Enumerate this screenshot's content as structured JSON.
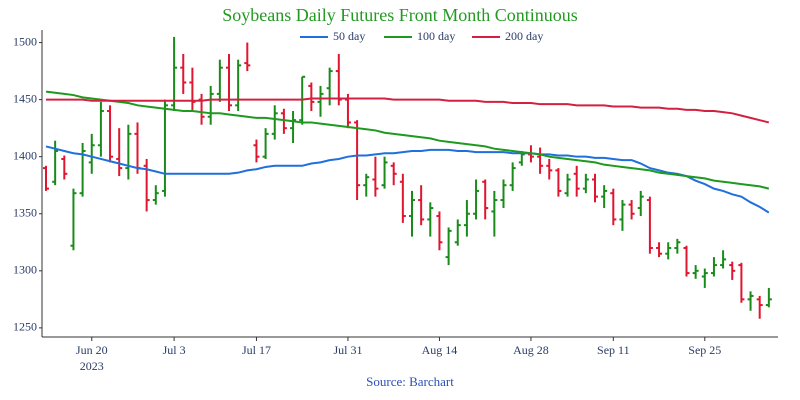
{
  "chart_data": {
    "type": "ohlc",
    "title": "Soybeans Daily Futures Front Month Continuous",
    "source": "Source: Barchart",
    "x": [
      "2023-06-12",
      "2023-06-13",
      "2023-06-14",
      "2023-06-15",
      "2023-06-16",
      "2023-06-20",
      "2023-06-21",
      "2023-06-22",
      "2023-06-23",
      "2023-06-26",
      "2023-06-27",
      "2023-06-28",
      "2023-06-29",
      "2023-06-30",
      "2023-07-03",
      "2023-07-05",
      "2023-07-06",
      "2023-07-07",
      "2023-07-10",
      "2023-07-11",
      "2023-07-12",
      "2023-07-13",
      "2023-07-14",
      "2023-07-17",
      "2023-07-18",
      "2023-07-19",
      "2023-07-20",
      "2023-07-21",
      "2023-07-24",
      "2023-07-25",
      "2023-07-26",
      "2023-07-27",
      "2023-07-28",
      "2023-07-31",
      "2023-08-01",
      "2023-08-02",
      "2023-08-03",
      "2023-08-04",
      "2023-08-07",
      "2023-08-08",
      "2023-08-09",
      "2023-08-10",
      "2023-08-11",
      "2023-08-14",
      "2023-08-15",
      "2023-08-16",
      "2023-08-17",
      "2023-08-18",
      "2023-08-21",
      "2023-08-22",
      "2023-08-23",
      "2023-08-24",
      "2023-08-25",
      "2023-08-28",
      "2023-08-29",
      "2023-08-30",
      "2023-08-31",
      "2023-09-01",
      "2023-09-05",
      "2023-09-06",
      "2023-09-07",
      "2023-09-08",
      "2023-09-11",
      "2023-09-12",
      "2023-09-13",
      "2023-09-14",
      "2023-09-15",
      "2023-09-18",
      "2023-09-19",
      "2023-09-20",
      "2023-09-21",
      "2023-09-22",
      "2023-09-25",
      "2023-09-26",
      "2023-09-27",
      "2023-09-28",
      "2023-09-29",
      "2023-10-02",
      "2023-10-03",
      "2023-10-04"
    ],
    "open": [
      1390,
      1378,
      1398,
      1322,
      1368,
      1395,
      1410,
      1440,
      1398,
      1390,
      1420,
      1392,
      1362,
      1370,
      1445,
      1478,
      1465,
      1450,
      1435,
      1455,
      1478,
      1445,
      1482,
      1410,
      1400,
      1420,
      1438,
      1425,
      1432,
      1462,
      1448,
      1460,
      1475,
      1450,
      1430,
      1375,
      1380,
      1375,
      1392,
      1378,
      1348,
      1362,
      1345,
      1348,
      1312,
      1325,
      1340,
      1350,
      1378,
      1352,
      1362,
      1375,
      1395,
      1402,
      1400,
      1392,
      1388,
      1368,
      1385,
      1372,
      1380,
      1365,
      1368,
      1345,
      1358,
      1355,
      1362,
      1320,
      1315,
      1320,
      1320,
      1298,
      1295,
      1298,
      1305,
      1305,
      1305,
      1275,
      1275,
      1270
    ],
    "high": [
      1392,
      1414,
      1401,
      1372,
      1412,
      1420,
      1448,
      1445,
      1425,
      1428,
      1430,
      1398,
      1375,
      1450,
      1505,
      1490,
      1478,
      1455,
      1462,
      1485,
      1490,
      1485,
      1500,
      1415,
      1425,
      1445,
      1442,
      1440,
      1470,
      1465,
      1462,
      1478,
      1490,
      1455,
      1432,
      1385,
      1400,
      1400,
      1395,
      1385,
      1370,
      1375,
      1360,
      1352,
      1338,
      1345,
      1362,
      1380,
      1380,
      1370,
      1380,
      1395,
      1405,
      1410,
      1408,
      1398,
      1390,
      1385,
      1392,
      1385,
      1385,
      1375,
      1372,
      1362,
      1362,
      1370,
      1365,
      1325,
      1325,
      1328,
      1322,
      1305,
      1302,
      1312,
      1318,
      1308,
      1307,
      1282,
      1278,
      1285
    ],
    "low": [
      1370,
      1375,
      1380,
      1318,
      1365,
      1385,
      1400,
      1395,
      1383,
      1380,
      1385,
      1352,
      1358,
      1365,
      1440,
      1455,
      1440,
      1428,
      1428,
      1448,
      1440,
      1440,
      1475,
      1395,
      1398,
      1415,
      1420,
      1412,
      1428,
      1440,
      1435,
      1445,
      1445,
      1425,
      1362,
      1365,
      1365,
      1372,
      1375,
      1342,
      1330,
      1340,
      1330,
      1318,
      1305,
      1322,
      1330,
      1345,
      1345,
      1330,
      1355,
      1370,
      1392,
      1395,
      1385,
      1380,
      1365,
      1365,
      1365,
      1368,
      1360,
      1355,
      1340,
      1335,
      1345,
      1348,
      1315,
      1312,
      1310,
      1315,
      1295,
      1293,
      1285,
      1295,
      1302,
      1292,
      1272,
      1265,
      1258,
      1268
    ],
    "close": [
      1372,
      1405,
      1385,
      1368,
      1405,
      1410,
      1440,
      1400,
      1390,
      1420,
      1390,
      1362,
      1368,
      1445,
      1478,
      1465,
      1448,
      1435,
      1455,
      1478,
      1445,
      1480,
      1480,
      1400,
      1420,
      1438,
      1425,
      1432,
      1470,
      1448,
      1455,
      1475,
      1450,
      1430,
      1375,
      1382,
      1372,
      1395,
      1385,
      1348,
      1362,
      1345,
      1355,
      1325,
      1335,
      1340,
      1350,
      1370,
      1355,
      1362,
      1375,
      1390,
      1402,
      1400,
      1392,
      1388,
      1370,
      1380,
      1372,
      1380,
      1365,
      1370,
      1345,
      1358,
      1350,
      1365,
      1320,
      1315,
      1320,
      1325,
      1298,
      1300,
      1298,
      1305,
      1310,
      1300,
      1275,
      1278,
      1270,
      1275
    ],
    "increasing_color": "#1a8a1a",
    "decreasing_color": "#e0152f",
    "series": [
      {
        "name": "50 day",
        "color": "#1f6fdc",
        "values": [
          1409,
          1407,
          1405,
          1403,
          1402,
          1400,
          1398,
          1396,
          1394,
          1392,
          1390,
          1389,
          1387,
          1385,
          1385,
          1385,
          1385,
          1385,
          1385,
          1385,
          1385,
          1386,
          1388,
          1389,
          1391,
          1392,
          1392,
          1392,
          1392,
          1394,
          1395,
          1397,
          1398,
          1400,
          1401,
          1401,
          1402,
          1403,
          1403,
          1404,
          1405,
          1405,
          1406,
          1406,
          1406,
          1405,
          1405,
          1404,
          1404,
          1404,
          1404,
          1403,
          1403,
          1403,
          1402,
          1402,
          1401,
          1401,
          1400,
          1400,
          1399,
          1399,
          1398,
          1397,
          1397,
          1394,
          1390,
          1388,
          1386,
          1385,
          1383,
          1379,
          1376,
          1372,
          1370,
          1367,
          1365,
          1360,
          1356,
          1351
        ]
      },
      {
        "name": "100 day",
        "color": "#1e9a1e",
        "values": [
          1457,
          1456,
          1455,
          1454,
          1452,
          1451,
          1450,
          1449,
          1448,
          1447,
          1445,
          1444,
          1443,
          1442,
          1441,
          1440,
          1440,
          1439,
          1438,
          1438,
          1437,
          1436,
          1435,
          1434,
          1434,
          1433,
          1432,
          1431,
          1430,
          1430,
          1429,
          1428,
          1427,
          1426,
          1425,
          1424,
          1423,
          1421,
          1420,
          1419,
          1418,
          1417,
          1416,
          1414,
          1413,
          1412,
          1411,
          1410,
          1409,
          1407,
          1406,
          1405,
          1404,
          1403,
          1402,
          1400,
          1399,
          1398,
          1397,
          1396,
          1395,
          1393,
          1392,
          1391,
          1390,
          1389,
          1388,
          1386,
          1385,
          1384,
          1383,
          1382,
          1381,
          1379,
          1378,
          1377,
          1376,
          1375,
          1374,
          1372
        ]
      },
      {
        "name": "200 day",
        "color": "#d42040",
        "values": [
          1450,
          1450,
          1450,
          1450,
          1450,
          1449,
          1449,
          1449,
          1449,
          1449,
          1449,
          1449,
          1449,
          1449,
          1449,
          1449,
          1449,
          1449,
          1450,
          1450,
          1450,
          1450,
          1450,
          1450,
          1450,
          1450,
          1450,
          1450,
          1450,
          1451,
          1451,
          1451,
          1451,
          1451,
          1451,
          1451,
          1451,
          1451,
          1450,
          1450,
          1450,
          1450,
          1450,
          1450,
          1449,
          1449,
          1449,
          1449,
          1448,
          1448,
          1448,
          1447,
          1447,
          1447,
          1446,
          1446,
          1446,
          1446,
          1445,
          1445,
          1445,
          1445,
          1444,
          1444,
          1444,
          1443,
          1443,
          1443,
          1442,
          1442,
          1441,
          1441,
          1440,
          1440,
          1439,
          1438,
          1436,
          1434,
          1432,
          1430
        ]
      }
    ],
    "ylim": [
      1242,
      1511
    ],
    "yticks": [
      1250,
      1300,
      1350,
      1400,
      1450,
      1500
    ],
    "xticks": [
      {
        "value": "2023-06-20",
        "label": "Jun 20"
      },
      {
        "value": "2023-07-03",
        "label": "Jul 3"
      },
      {
        "value": "2023-07-17",
        "label": "Jul 17"
      },
      {
        "value": "2023-07-31",
        "label": "Jul 31"
      },
      {
        "value": "2023-08-14",
        "label": "Aug 14"
      },
      {
        "value": "2023-08-28",
        "label": "Aug 28"
      },
      {
        "value": "2023-09-11",
        "label": "Sep 11"
      },
      {
        "value": "2023-09-25",
        "label": "Sep 25"
      }
    ],
    "x_year_label": "2023"
  }
}
